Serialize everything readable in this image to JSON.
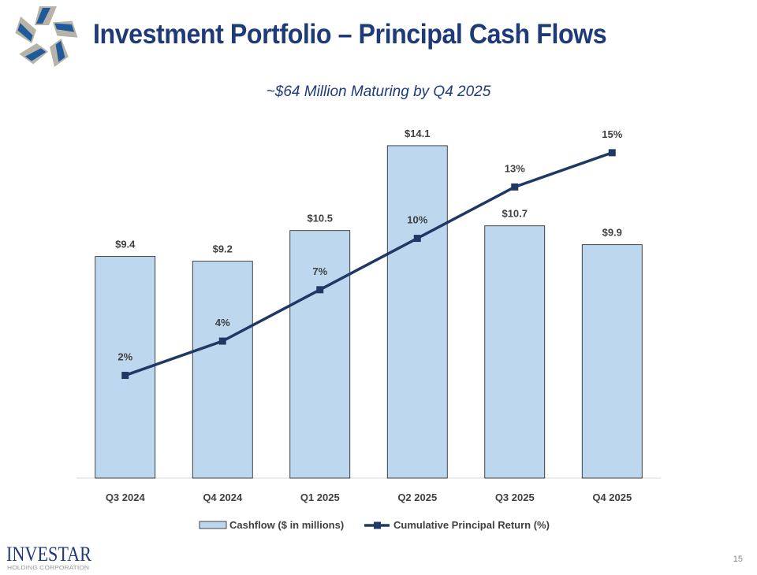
{
  "header": {
    "title": "Investment Portfolio – Principal Cash Flows",
    "logo": "Investar star logo"
  },
  "footer": {
    "logo_text": "INVESTAR",
    "logo_subtext": "HOLDING CORPORATION",
    "page_number": "15"
  },
  "chart_data": {
    "type": "bar",
    "title": "",
    "subtitle": "~$64 Million Maturing by Q4 2025",
    "categories": [
      "Q3 2024",
      "Q4 2024",
      "Q1 2025",
      "Q2 2025",
      "Q3 2025",
      "Q4 2025"
    ],
    "series": [
      {
        "name": "Cashflow ($ in millions)",
        "type": "bar",
        "values": [
          9.4,
          9.2,
          10.5,
          14.1,
          10.7,
          9.9
        ],
        "labels": [
          "$9.4",
          "$9.2",
          "$10.5",
          "$14.1",
          "$10.7",
          "$9.9"
        ],
        "color": "#BDD7EE",
        "axis": "primary"
      },
      {
        "name": "Cumulative Principal Return (%)",
        "type": "line",
        "values": [
          2,
          4,
          7,
          10,
          13,
          15
        ],
        "labels": [
          "2%",
          "4%",
          "7%",
          "10%",
          "13%",
          "15%"
        ],
        "color": "#1F3864",
        "axis": "secondary"
      }
    ],
    "ylim": [
      0,
      15
    ],
    "y2lim": [
      -4,
      16.65
    ],
    "grid": false,
    "legend": "bottom"
  }
}
